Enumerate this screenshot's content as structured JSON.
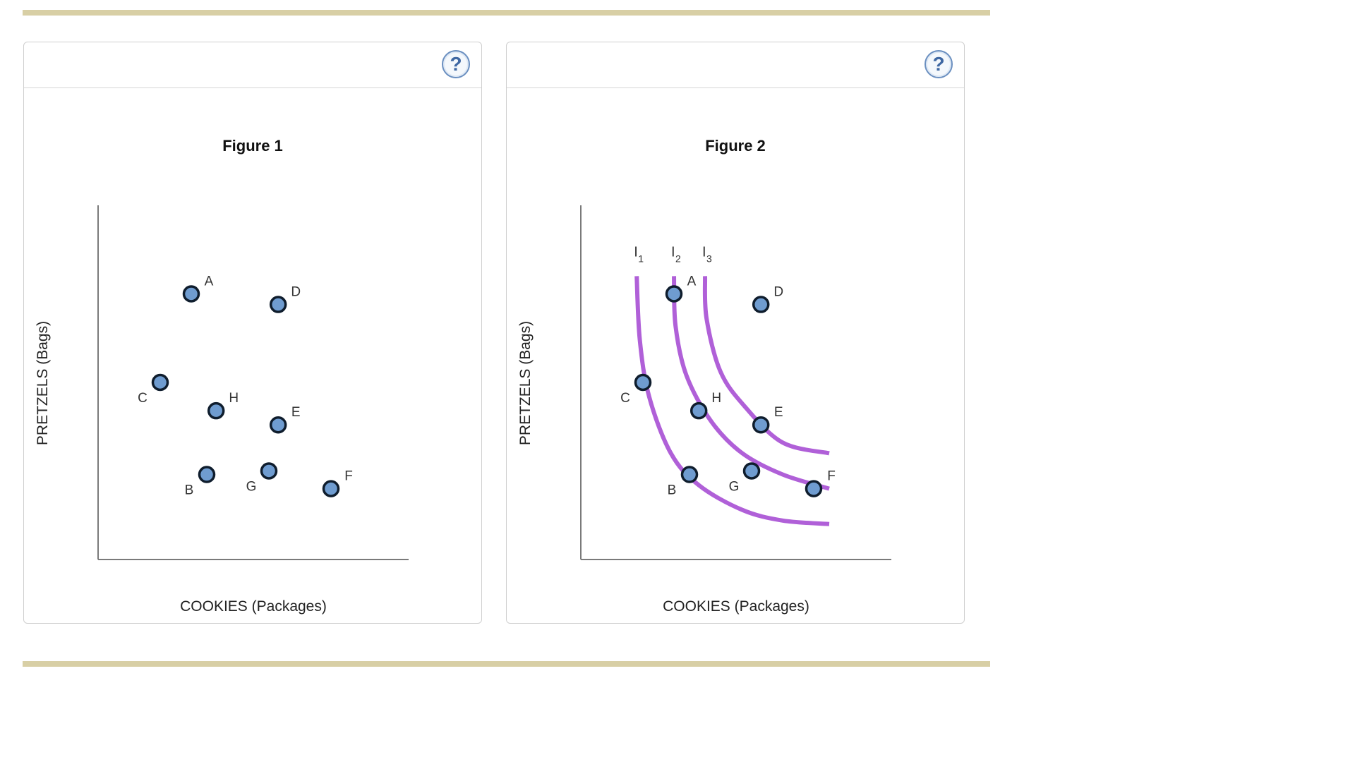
{
  "help_button_label": "?",
  "chart_data": [
    {
      "type": "scatter",
      "title": "Figure 1",
      "xlabel": "COOKIES (Packages)",
      "ylabel": "PRETZELS (Bags)",
      "grid": false,
      "xlim": [
        0,
        10
      ],
      "ylim": [
        0,
        10
      ],
      "points": [
        {
          "label": "A",
          "x": 3.0,
          "y": 7.5
        },
        {
          "label": "D",
          "x": 5.8,
          "y": 7.2
        },
        {
          "label": "C",
          "x": 2.0,
          "y": 5.0
        },
        {
          "label": "H",
          "x": 3.8,
          "y": 4.2
        },
        {
          "label": "E",
          "x": 5.8,
          "y": 3.8
        },
        {
          "label": "B",
          "x": 3.5,
          "y": 2.4
        },
        {
          "label": "G",
          "x": 5.5,
          "y": 2.5
        },
        {
          "label": "F",
          "x": 7.5,
          "y": 2.0
        }
      ]
    },
    {
      "type": "scatter",
      "title": "Figure 2",
      "xlabel": "COOKIES (Packages)",
      "ylabel": "PRETZELS (Bags)",
      "grid": false,
      "xlim": [
        0,
        10
      ],
      "ylim": [
        0,
        10
      ],
      "points": [
        {
          "label": "A",
          "x": 3.0,
          "y": 7.5
        },
        {
          "label": "D",
          "x": 5.8,
          "y": 7.2
        },
        {
          "label": "C",
          "x": 2.0,
          "y": 5.0
        },
        {
          "label": "H",
          "x": 3.8,
          "y": 4.2
        },
        {
          "label": "E",
          "x": 5.8,
          "y": 3.8
        },
        {
          "label": "B",
          "x": 3.5,
          "y": 2.4
        },
        {
          "label": "G",
          "x": 5.5,
          "y": 2.5
        },
        {
          "label": "F",
          "x": 7.5,
          "y": 2.0
        }
      ],
      "curves": [
        {
          "name": "I",
          "sub": "1",
          "color": "#b060d8",
          "points": [
            [
              1.8,
              8.0
            ],
            [
              1.9,
              6.2
            ],
            [
              2.2,
              4.6
            ],
            [
              2.9,
              3.0
            ],
            [
              3.8,
              2.1
            ],
            [
              5.2,
              1.4
            ],
            [
              6.5,
              1.1
            ],
            [
              8.0,
              1.0
            ]
          ]
        },
        {
          "name": "I",
          "sub": "2",
          "color": "#b060d8",
          "points": [
            [
              3.0,
              8.0
            ],
            [
              3.05,
              6.6
            ],
            [
              3.4,
              5.2
            ],
            [
              4.2,
              3.9
            ],
            [
              5.2,
              3.0
            ],
            [
              6.5,
              2.4
            ],
            [
              8.0,
              2.0
            ]
          ]
        },
        {
          "name": "I",
          "sub": "3",
          "color": "#b060d8",
          "points": [
            [
              4.0,
              8.0
            ],
            [
              4.05,
              6.8
            ],
            [
              4.5,
              5.3
            ],
            [
              5.3,
              4.3
            ],
            [
              6.5,
              3.3
            ],
            [
              8.0,
              3.0
            ]
          ]
        }
      ]
    }
  ]
}
